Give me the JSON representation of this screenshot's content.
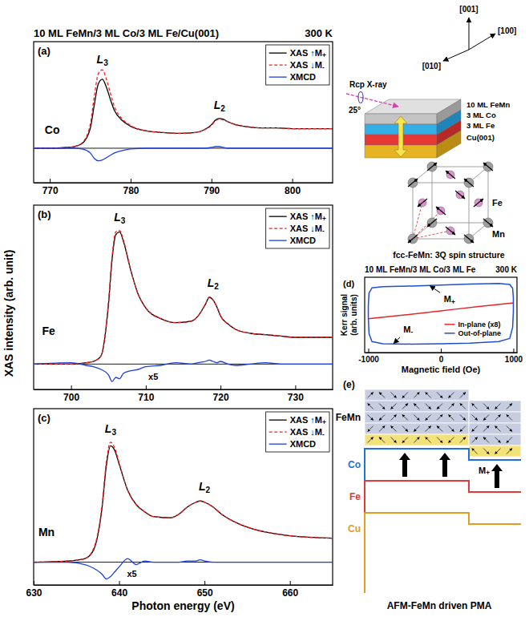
{
  "chart_data": [
    {
      "type": "line",
      "panel_label": "(a)",
      "title": "10 ML FeMn/3 ML Co/3 ML Fe/Cu(001)",
      "subtitle": "300 K",
      "x": [
        768,
        770,
        772,
        773,
        774,
        775,
        775.5,
        776,
        776.5,
        777,
        777.5,
        778,
        779,
        780,
        782,
        784,
        786,
        788,
        789,
        790,
        790.5,
        791,
        791.5,
        792,
        793,
        794,
        796,
        798,
        800,
        802,
        805
      ],
      "series": [
        {
          "name": "XAS ↑M+",
          "color": "#000000",
          "line_style": "solid",
          "values": [
            0,
            0,
            0.01,
            0.02,
            0.06,
            0.25,
            0.55,
            0.82,
            0.88,
            0.78,
            0.62,
            0.48,
            0.35,
            0.28,
            0.22,
            0.2,
            0.19,
            0.2,
            0.23,
            0.3,
            0.36,
            0.38,
            0.37,
            0.34,
            0.3,
            0.28,
            0.26,
            0.26,
            0.25,
            0.25,
            0.25
          ]
        },
        {
          "name": "XAS ↓M-",
          "color": "#ff1a1a",
          "line_style": "dashed",
          "values": [
            0,
            0,
            0.01,
            0.02,
            0.07,
            0.3,
            0.66,
            0.95,
            1,
            0.88,
            0.7,
            0.53,
            0.37,
            0.29,
            0.22,
            0.2,
            0.19,
            0.2,
            0.23,
            0.29,
            0.35,
            0.37,
            0.36,
            0.34,
            0.3,
            0.28,
            0.26,
            0.26,
            0.25,
            0.25,
            0.25
          ]
        },
        {
          "name": "XMCD",
          "color": "#1c3fe0",
          "line_style": "solid",
          "values": [
            0,
            0,
            0,
            0,
            -0.01,
            -0.06,
            -0.13,
            -0.16,
            -0.15,
            -0.12,
            -0.09,
            -0.06,
            -0.03,
            -0.01,
            0,
            0,
            0,
            0,
            0,
            0.01,
            0.02,
            0.02,
            0.01,
            0,
            0,
            0,
            0,
            0,
            0,
            0,
            0
          ]
        }
      ],
      "xlim": [
        768,
        805
      ],
      "xticks": [
        770,
        780,
        790,
        800
      ],
      "ylim": [
        -0.44,
        1.36
      ],
      "yticks": [
        0
      ],
      "tick_labels": "x",
      "legend": "upper right",
      "annotations": [
        {
          "text": "L3",
          "x": 776.5,
          "y": 1.08
        },
        {
          "text": "L2",
          "x": 791,
          "y": 0.5
        },
        {
          "text": "Co",
          "x": 770.3,
          "y": 0.18
        }
      ]
    },
    {
      "type": "line",
      "panel_label": "(b)",
      "ylabel": "XAS intensity (arb. unit)",
      "x": [
        695,
        700,
        702,
        703,
        704,
        705,
        705.5,
        706,
        706.5,
        707,
        708,
        709,
        710,
        712,
        714,
        716,
        717,
        718,
        718.5,
        719,
        719.5,
        720,
        721,
        722,
        724,
        726,
        728,
        730,
        735
      ],
      "series": [
        {
          "name": "XAS ↑M+",
          "color": "#000000",
          "line_style": "solid",
          "values": [
            0,
            0,
            0.01,
            0.02,
            0.06,
            0.44,
            0.79,
            0.97,
            0.99,
            0.92,
            0.7,
            0.52,
            0.42,
            0.34,
            0.31,
            0.32,
            0.36,
            0.45,
            0.5,
            0.48,
            0.43,
            0.36,
            0.3,
            0.26,
            0.23,
            0.22,
            0.21,
            0.2,
            0.2
          ]
        },
        {
          "name": "XAS ↓M-",
          "color": "#ff1a1a",
          "line_style": "dashed",
          "values": [
            0,
            0,
            0.01,
            0.02,
            0.06,
            0.46,
            0.81,
            0.99,
            1,
            0.93,
            0.7,
            0.52,
            0.42,
            0.34,
            0.31,
            0.32,
            0.36,
            0.45,
            0.5,
            0.48,
            0.43,
            0.36,
            0.3,
            0.26,
            0.23,
            0.22,
            0.21,
            0.2,
            0.2
          ]
        },
        {
          "name": "XMCD",
          "color": "#1c3fe0",
          "line_style": "solid",
          "values": [
            0,
            0.01,
            -0.01,
            -0.02,
            -0.04,
            -0.08,
            -0.13,
            -0.1,
            -0.11,
            -0.07,
            -0.05,
            -0.04,
            -0.02,
            -0.01,
            0.01,
            0,
            0.01,
            0.02,
            0.03,
            0.02,
            0.01,
            0.02,
            0,
            -0.01,
            0,
            0.01,
            0,
            0,
            0
          ]
        }
      ],
      "xlim": [
        695,
        735
      ],
      "xticks": [
        700,
        710,
        720,
        730
      ],
      "ylim": [
        -0.19,
        1.19
      ],
      "yticks": [
        0
      ],
      "tick_labels": "x",
      "legend": "upper right",
      "annotations": [
        {
          "text": "L3",
          "x": 706.5,
          "y": 1.07
        },
        {
          "text": "L2",
          "x": 719,
          "y": 0.58
        },
        {
          "text": "Fe",
          "x": 697,
          "y": 0.22
        },
        {
          "text": "x5",
          "x": 711,
          "y": -0.12
        }
      ]
    },
    {
      "type": "line",
      "panel_label": "(c)",
      "xlabel": "Photon energy (eV)",
      "x": [
        630,
        634,
        636,
        637,
        638,
        638.5,
        639,
        639.5,
        640,
        641,
        642,
        643,
        644,
        646,
        647,
        648,
        649,
        649.5,
        650,
        651,
        652,
        654,
        656,
        658,
        660,
        665
      ],
      "series": [
        {
          "name": "XAS ↑M+",
          "color": "#000000",
          "line_style": "solid",
          "values": [
            0,
            0.01,
            0.03,
            0.1,
            0.45,
            0.8,
            0.97,
            0.93,
            0.82,
            0.6,
            0.48,
            0.42,
            0.38,
            0.37,
            0.4,
            0.46,
            0.5,
            0.51,
            0.5,
            0.46,
            0.4,
            0.32,
            0.27,
            0.24,
            0.22,
            0.2
          ]
        },
        {
          "name": "XAS ↓M-",
          "color": "#ff1a1a",
          "line_style": "dashed",
          "values": [
            0,
            0.01,
            0.03,
            0.11,
            0.47,
            0.83,
            1,
            0.95,
            0.83,
            0.6,
            0.48,
            0.42,
            0.38,
            0.37,
            0.4,
            0.46,
            0.5,
            0.51,
            0.5,
            0.46,
            0.4,
            0.32,
            0.27,
            0.24,
            0.22,
            0.2
          ]
        },
        {
          "name": "XMCD",
          "color": "#1c3fe0",
          "line_style": "solid",
          "values": [
            0,
            0,
            -0.02,
            -0.05,
            -0.1,
            -0.14,
            -0.12,
            -0.08,
            -0.04,
            0.03,
            -0.02,
            0.01,
            0,
            0,
            0,
            0.01,
            0.01,
            0.02,
            0.01,
            0,
            0,
            0,
            0,
            0,
            0,
            0
          ]
        }
      ],
      "xlim": [
        630,
        665
      ],
      "xticks": [
        630,
        640,
        650,
        660
      ],
      "ylim": [
        -0.19,
        1.28
      ],
      "yticks": [
        0
      ],
      "tick_labels": "x",
      "legend": "upper right",
      "annotations": [
        {
          "text": "L3",
          "x": 639,
          "y": 1.08
        },
        {
          "text": "L2",
          "x": 650,
          "y": 0.6
        },
        {
          "text": "Mn",
          "x": 631.5,
          "y": 0.22
        },
        {
          "text": "x5",
          "x": 641.5,
          "y": -0.12
        }
      ]
    },
    {
      "type": "line",
      "panel_label": "(d)",
      "title": "10 ML FeMn/3 ML Co/3 ML Fe",
      "subtitle": "300 K",
      "xlabel": "Magnetic field (Oe)",
      "ylabel": "Kerr signal (arb. units)",
      "series": [
        {
          "name": "In-plane (x8)",
          "color": "#e8262b",
          "line_style": "solid",
          "x": [
            -1000,
            -500,
            0,
            500,
            1000
          ],
          "values": [
            -0.12,
            0,
            0.13,
            0.26,
            0.38
          ]
        },
        {
          "name": "Out-of-plane",
          "color": "#1f4fd0",
          "line_style": "solid",
          "x": [
            1000,
            990,
            950,
            800,
            400,
            0,
            -400,
            -800,
            -950,
            -990,
            -1000,
            -1000,
            -990,
            -950,
            -800,
            -400,
            0,
            400,
            800,
            950,
            990,
            1000,
            1000
          ],
          "values": [
            0.55,
            0.85,
            0.97,
            1,
            0.98,
            0.95,
            0.92,
            0.9,
            0.86,
            0.7,
            0.3,
            -0.1,
            -0.6,
            -0.85,
            -0.92,
            -0.93,
            -0.92,
            -0.9,
            -0.85,
            -0.75,
            -0.4,
            0.1,
            0.55
          ]
        }
      ],
      "xlim": [
        -1050,
        1050
      ],
      "xticks": [
        -1000,
        0,
        1000
      ],
      "ylim": [
        -1.2,
        1.2
      ],
      "yticks": [],
      "tick_labels": "x",
      "legend": "lower right",
      "annotations": [
        {
          "text": "M+",
          "x": 120,
          "y": 0.5,
          "arrow_to": [
            -150,
            0.93
          ]
        },
        {
          "text": "M-",
          "x": -450,
          "y": -0.45,
          "arrow_to": [
            -650,
            -0.91
          ]
        }
      ]
    }
  ],
  "diagrams": {
    "sample": {
      "axes": [
        "[001]",
        "[100]",
        "[010]"
      ],
      "beam": "Rcp X-ray",
      "angle": "25°",
      "layers": [
        "10 ML FeMn",
        "3 ML Co",
        "3 ML Fe",
        "Cu(001)"
      ]
    },
    "spin_structure": {
      "atoms": [
        "Mn",
        "Fe"
      ],
      "caption": "fcc-FeMn: 3Q spin structure"
    },
    "schematic": {
      "panel_label": "(e)",
      "layers": [
        "FeMn",
        "Co",
        "Fe",
        "Cu"
      ],
      "moment": "M+",
      "caption": "AFM-FeMn driven PMA"
    }
  }
}
